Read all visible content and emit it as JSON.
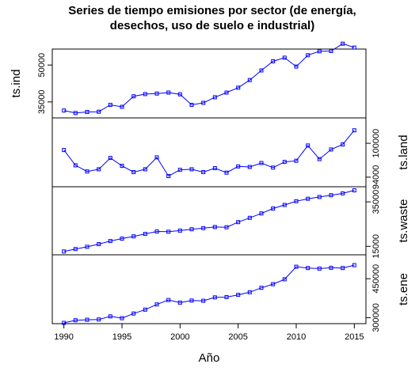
{
  "chart_data": {
    "type": "line",
    "title_line1": "Series de tiempo emisiones por sector (de energía,",
    "title_line2": "desechos, uso de suelo e industrial)",
    "xlabel": "Año",
    "x": [
      1990,
      1991,
      1992,
      1993,
      1994,
      1995,
      1996,
      1997,
      1998,
      1999,
      2000,
      2001,
      2002,
      2003,
      2004,
      2005,
      2006,
      2007,
      2008,
      2009,
      2010,
      2011,
      2012,
      2013,
      2014,
      2015
    ],
    "xlim": [
      1989.0,
      2016.0
    ],
    "xticks": [
      1990,
      1995,
      2000,
      2005,
      2010,
      2015
    ],
    "line_color": "#0000ff",
    "panels": [
      {
        "name": "ts.ind",
        "label_side": "left",
        "ylim": [
          28500,
          56500
        ],
        "yticks": [
          35000,
          50000
        ],
        "values": [
          31500,
          30500,
          30900,
          31000,
          33800,
          33000,
          37300,
          38200,
          38400,
          38800,
          38100,
          33800,
          34600,
          36900,
          38800,
          40800,
          43900,
          47800,
          51500,
          53000,
          49400,
          54000,
          55600,
          55700,
          58700,
          57100
        ]
      },
      {
        "name": "ts.land",
        "label_side": "right",
        "ylim": [
          92300,
          104500
        ],
        "yticks": [
          94000,
          100000
        ],
        "values": [
          98800,
          96100,
          95000,
          95400,
          97400,
          96000,
          94900,
          95400,
          97500,
          94200,
          95300,
          95400,
          94900,
          95600,
          94800,
          95900,
          95800,
          96500,
          95700,
          96700,
          96900,
          99600,
          97200,
          98900,
          99800,
          102300
        ]
      },
      {
        "name": "ts.waste",
        "label_side": "right",
        "ylim": [
          11200,
          41800
        ],
        "yticks": [
          15000,
          35000
        ],
        "values": [
          12700,
          13800,
          14800,
          16000,
          17400,
          18500,
          19500,
          20600,
          21700,
          21600,
          22100,
          22700,
          23200,
          23700,
          23600,
          25900,
          27800,
          29800,
          32000,
          33600,
          35300,
          36400,
          37200,
          38000,
          38800,
          40200
        ]
      },
      {
        "name": "ts.ene",
        "label_side": "right",
        "ylim": [
          277000,
          542000
        ],
        "yticks": [
          300000,
          450000
        ],
        "values": [
          280000,
          290000,
          292000,
          293000,
          305000,
          298000,
          316000,
          331000,
          351000,
          368000,
          358000,
          366000,
          365000,
          378000,
          379000,
          388000,
          398000,
          415000,
          429000,
          448000,
          496000,
          491000,
          489000,
          492000,
          491000,
          502000
        ]
      }
    ]
  }
}
